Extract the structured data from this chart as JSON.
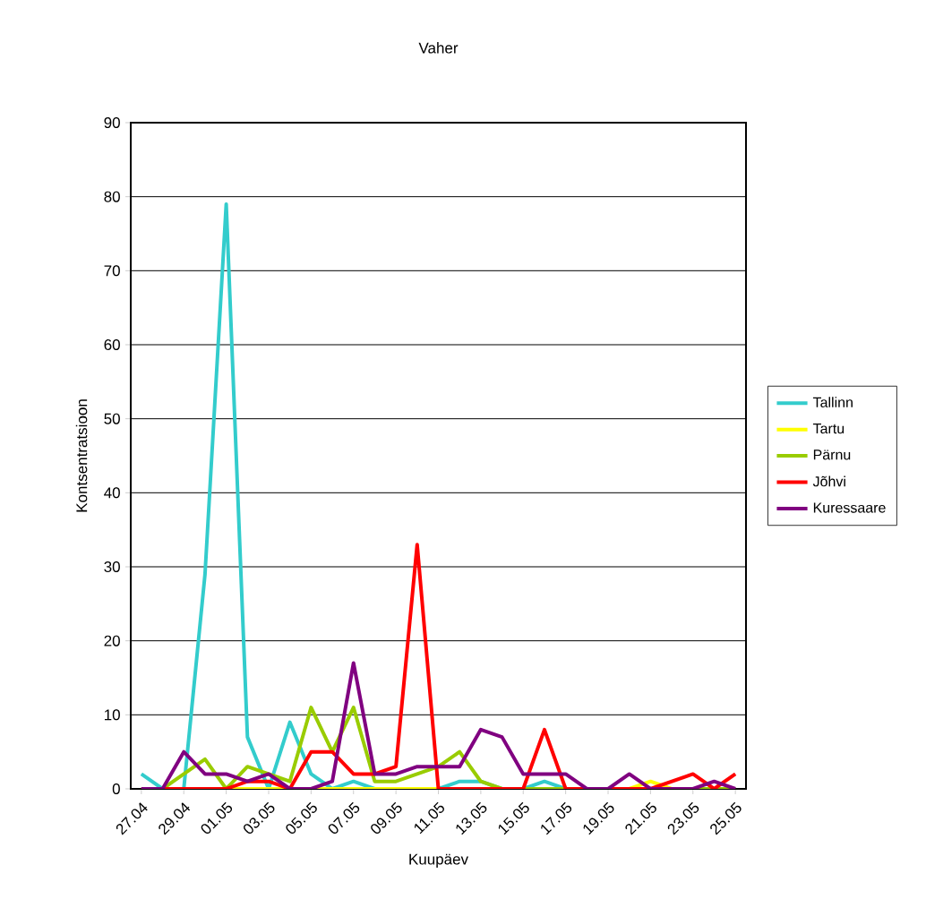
{
  "chart_data": {
    "type": "line",
    "title": "Vaher",
    "xlabel": "Kuupäev",
    "ylabel": "Kontsentratsioon",
    "categories": [
      "27.04",
      null,
      "29.04",
      null,
      "01.05",
      null,
      "03.05",
      null,
      "05.05",
      null,
      "07.05",
      null,
      "09.05",
      null,
      "11.05",
      null,
      "13.05",
      null,
      "15.05",
      null,
      "17.05",
      null,
      "19.05",
      null,
      "21.05",
      null,
      "23.05",
      null,
      "25.05"
    ],
    "ylim": [
      0,
      90
    ],
    "yticks": [
      0,
      10,
      20,
      30,
      40,
      50,
      60,
      70,
      80,
      90
    ],
    "grid": "y",
    "legend": "right",
    "marker": "none",
    "line_style": "solid",
    "series": [
      {
        "name": "Tallinn",
        "color": "#33cccc",
        "values": [
          2,
          0,
          0,
          29,
          79,
          7,
          0,
          9,
          2,
          0,
          1,
          0,
          0,
          0,
          0,
          1,
          1,
          0,
          0,
          1,
          0,
          0,
          null,
          null,
          null,
          null,
          null,
          null,
          null
        ]
      },
      {
        "name": "Tartu",
        "color": "#ffff00",
        "values": [
          null,
          null,
          null,
          null,
          0,
          0,
          0,
          0,
          0,
          0,
          0,
          0,
          0,
          0,
          0,
          null,
          null,
          null,
          null,
          null,
          null,
          null,
          null,
          0,
          1,
          0,
          null,
          null,
          null
        ]
      },
      {
        "name": "Pärnu",
        "color": "#99cc00",
        "values": [
          0,
          0,
          2,
          4,
          0,
          3,
          2,
          1,
          11,
          5,
          11,
          1,
          1,
          2,
          3,
          5,
          1,
          0,
          0,
          0,
          0,
          0,
          0,
          0,
          0,
          0,
          0,
          0,
          0
        ]
      },
      {
        "name": "Jõhvi",
        "color": "#ff0000",
        "values": [
          0,
          0,
          0,
          0,
          0,
          1,
          1,
          0,
          5,
          5,
          2,
          2,
          3,
          33,
          0,
          0,
          0,
          0,
          0,
          8,
          0,
          0,
          0,
          0,
          0,
          1,
          2,
          0,
          2
        ]
      },
      {
        "name": "Kuressaare",
        "color": "#800080",
        "values": [
          0,
          0,
          5,
          2,
          2,
          1,
          2,
          0,
          0,
          1,
          17,
          2,
          2,
          3,
          3,
          3,
          8,
          7,
          2,
          2,
          2,
          0,
          0,
          2,
          0,
          0,
          0,
          1,
          0
        ]
      }
    ]
  }
}
